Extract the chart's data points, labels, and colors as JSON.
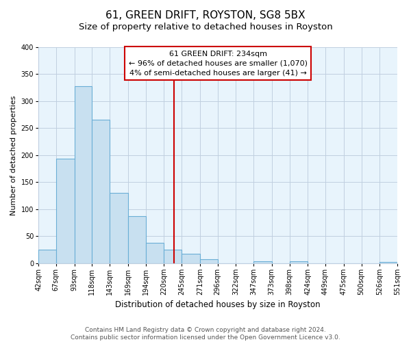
{
  "title": "61, GREEN DRIFT, ROYSTON, SG8 5BX",
  "subtitle": "Size of property relative to detached houses in Royston",
  "xlabel": "Distribution of detached houses by size in Royston",
  "ylabel": "Number of detached properties",
  "bin_edges": [
    42,
    67,
    93,
    118,
    143,
    169,
    194,
    220,
    245,
    271,
    296,
    322,
    347,
    373,
    398,
    424,
    449,
    475,
    500,
    526,
    551
  ],
  "bin_labels": [
    "42sqm",
    "67sqm",
    "93sqm",
    "118sqm",
    "143sqm",
    "169sqm",
    "194sqm",
    "220sqm",
    "245sqm",
    "271sqm",
    "296sqm",
    "322sqm",
    "347sqm",
    "373sqm",
    "398sqm",
    "424sqm",
    "449sqm",
    "475sqm",
    "500sqm",
    "526sqm",
    "551sqm"
  ],
  "bar_heights": [
    25,
    193,
    328,
    266,
    130,
    87,
    38,
    25,
    17,
    8,
    0,
    0,
    4,
    0,
    4,
    0,
    0,
    0,
    0,
    2
  ],
  "bar_color": "#c8e0f0",
  "bar_edge_color": "#6aaed6",
  "property_line_x": 234,
  "property_line_color": "#cc0000",
  "annotation_title": "61 GREEN DRIFT: 234sqm",
  "annotation_line1": "← 96% of detached houses are smaller (1,070)",
  "annotation_line2": "4% of semi-detached houses are larger (41) →",
  "annotation_box_color": "#ffffff",
  "annotation_box_edge_color": "#cc0000",
  "ylim": [
    0,
    400
  ],
  "yticks": [
    0,
    50,
    100,
    150,
    200,
    250,
    300,
    350,
    400
  ],
  "footer_line1": "Contains HM Land Registry data © Crown copyright and database right 2024.",
  "footer_line2": "Contains public sector information licensed under the Open Government Licence v3.0.",
  "background_color": "#ffffff",
  "plot_bg_color": "#e8f4fc",
  "grid_color": "#c0cfe0",
  "title_fontsize": 11,
  "subtitle_fontsize": 9.5,
  "axis_label_fontsize": 8,
  "tick_fontsize": 7,
  "annotation_fontsize": 8,
  "footer_fontsize": 6.5
}
